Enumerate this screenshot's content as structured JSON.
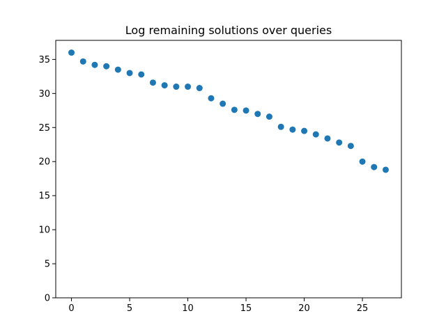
{
  "chart_data": {
    "type": "scatter",
    "title": "Log remaining solutions over queries",
    "xlabel": "",
    "ylabel": "",
    "x": [
      0,
      1,
      2,
      3,
      4,
      5,
      6,
      7,
      8,
      9,
      10,
      11,
      12,
      13,
      14,
      15,
      16,
      17,
      18,
      19,
      20,
      21,
      22,
      23,
      24,
      25,
      26,
      27
    ],
    "y": [
      36.0,
      34.7,
      34.2,
      34.0,
      33.5,
      33.0,
      32.8,
      31.6,
      31.2,
      31.0,
      31.0,
      30.8,
      29.3,
      28.5,
      27.6,
      27.5,
      27.0,
      26.6,
      25.1,
      24.7,
      24.5,
      24.0,
      23.4,
      22.8,
      22.3,
      20.0,
      19.2,
      18.8
    ],
    "xlim": [
      -1.35,
      28.35
    ],
    "ylim": [
      0,
      37.8
    ],
    "xticks": [
      0,
      5,
      10,
      15,
      20,
      25
    ],
    "yticks": [
      0,
      5,
      10,
      15,
      20,
      25,
      30,
      35
    ],
    "grid": false,
    "marker_color": "#1f77b4"
  }
}
